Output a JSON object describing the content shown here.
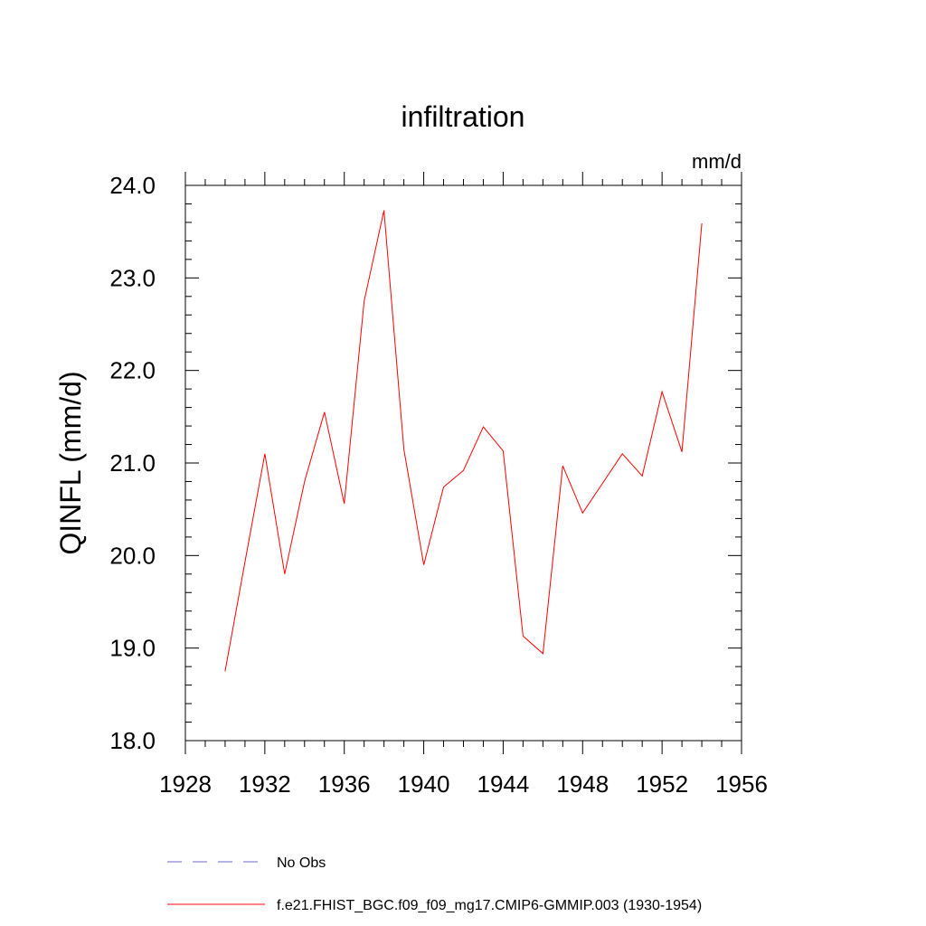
{
  "chart_data": {
    "type": "line",
    "title": "infiltration",
    "units": "mm/d",
    "ylabel": "QINFL  (mm/d)",
    "xlabel": "",
    "xlim": [
      1928,
      1956
    ],
    "ylim": [
      18.0,
      24.0
    ],
    "x_ticks": [
      "1928",
      "1932",
      "1936",
      "1940",
      "1944",
      "1948",
      "1952",
      "1956"
    ],
    "y_ticks": [
      "18.0",
      "19.0",
      "20.0",
      "21.0",
      "22.0",
      "23.0",
      "24.0"
    ],
    "series": [
      {
        "name": "f.e21.FHIST_BGC.f09_f09_mg17.CMIP6-GMMIP.003 (1930-1954)",
        "color": "#ff0000",
        "style": "solid",
        "x": [
          1930,
          1931,
          1932,
          1933,
          1934,
          1935,
          1936,
          1937,
          1938,
          1939,
          1940,
          1941,
          1942,
          1943,
          1944,
          1945,
          1946,
          1947,
          1948,
          1949,
          1950,
          1951,
          1952,
          1953,
          1954
        ],
        "y": [
          18.75,
          19.93,
          21.1,
          19.8,
          20.8,
          21.55,
          20.56,
          22.75,
          23.73,
          21.15,
          19.9,
          20.74,
          20.92,
          21.39,
          21.13,
          19.13,
          18.94,
          20.97,
          20.46,
          20.78,
          21.1,
          20.86,
          21.77,
          21.12,
          23.59
        ]
      }
    ],
    "legend": [
      {
        "label": "No Obs",
        "color": "#6b6bd6",
        "style": "dashed"
      },
      {
        "label": "f.e21.FHIST_BGC.f09_f09_mg17.CMIP6-GMMIP.003 (1930-1954)",
        "color": "#ff0000",
        "style": "solid"
      }
    ],
    "legend_placement": "bottom"
  }
}
